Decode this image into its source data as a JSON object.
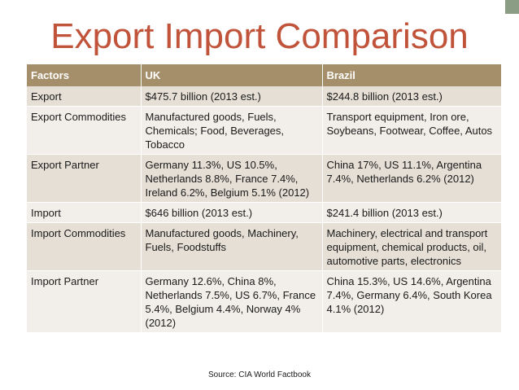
{
  "slide": {
    "title": "Export Import Comparison",
    "source": "Source: CIA World Factbook"
  },
  "colors": {
    "title": "#c0533a",
    "header_bg": "#a48f6a",
    "row_odd": "#e5dfd5",
    "row_even": "#f2efea",
    "corner_accent": "#8c9d86"
  },
  "table": {
    "headers": [
      "Factors",
      "UK",
      "Brazil"
    ],
    "rows": [
      [
        "Export",
        "$475.7 billion (2013 est.)",
        "$244.8 billion (2013 est.)"
      ],
      [
        "Export Commodities",
        "Manufactured goods, Fuels, Chemicals; Food, Beverages, Tobacco",
        "Transport equipment, Iron ore, Soybeans, Footwear, Coffee, Autos"
      ],
      [
        "Export Partner",
        "Germany 11.3%, US 10.5%, Netherlands 8.8%, France 7.4%, Ireland 6.2%, Belgium 5.1% (2012)",
        "China 17%, US 11.1%, Argentina 7.4%, Netherlands 6.2% (2012)"
      ],
      [
        "Import",
        "$646 billion (2013 est.)",
        "$241.4 billion (2013 est.)"
      ],
      [
        "Import Commodities",
        "Manufactured goods, Machinery, Fuels, Foodstuffs",
        "Machinery, electrical and transport equipment, chemical products, oil, automotive parts, electronics"
      ],
      [
        "Import Partner",
        "Germany 12.6%, China 8%, Netherlands 7.5%, US 6.7%, France 5.4%, Belgium 4.4%, Norway 4% (2012)",
        "China 15.3%, US 14.6%, Argentina 7.4%, Germany 6.4%, South Korea 4.1% (2012)"
      ]
    ]
  }
}
